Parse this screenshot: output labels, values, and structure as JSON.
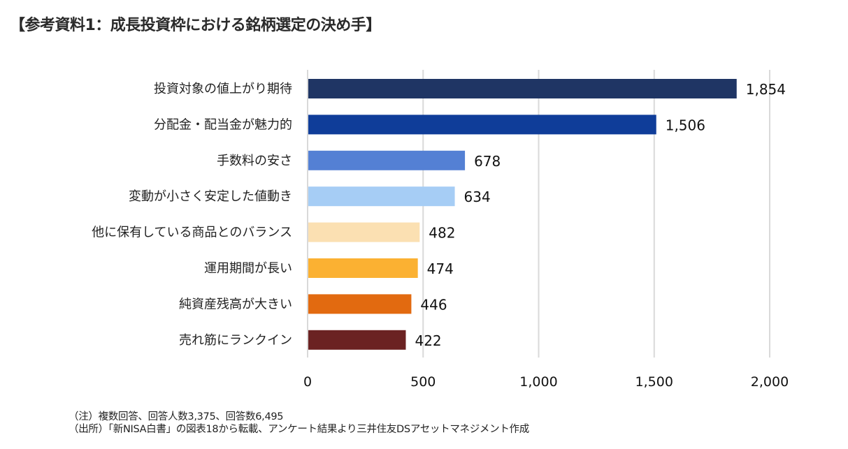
{
  "title": "【参考資料1：成長投資枠における銘柄選定の決め手】",
  "notes": [
    "（注）複数回答、回答人数3,375、回答数6,495",
    "（出所）「新NISA白書」の図表18から転載、アンケート結果より三井住友DSアセットマネジメント作成"
  ],
  "chart_data": {
    "type": "bar",
    "orientation": "horizontal",
    "title": "【参考資料1：成長投資枠における銘柄選定の決め手】",
    "xlabel": "",
    "ylabel": "",
    "categories": [
      "投資対象の値上がり期待",
      "分配金・配当金が魅力的",
      "手数料の安さ",
      "変動が小さく安定した値動き",
      "他に保有している商品とのバランス",
      "運用期間が長い",
      "純資産残高が大きい",
      "売れ筋にランクイン"
    ],
    "values": [
      1854,
      1506,
      678,
      634,
      482,
      474,
      446,
      422
    ],
    "value_labels": [
      "1,854",
      "1,506",
      "678",
      "634",
      "482",
      "474",
      "446",
      "422"
    ],
    "colors": [
      "#1f3564",
      "#0f3d99",
      "#5480d4",
      "#a6cdf5",
      "#fbe0b2",
      "#fbb132",
      "#e26a10",
      "#6b2222"
    ],
    "xlim": [
      0,
      2000
    ],
    "xticks": [
      0,
      500,
      1000,
      1500,
      2000
    ],
    "xtick_labels": [
      "0",
      "500",
      "1,000",
      "1,500",
      "2,000"
    ],
    "grid": "vertical",
    "grid_color": "#d9d9d9",
    "legend": "none"
  }
}
